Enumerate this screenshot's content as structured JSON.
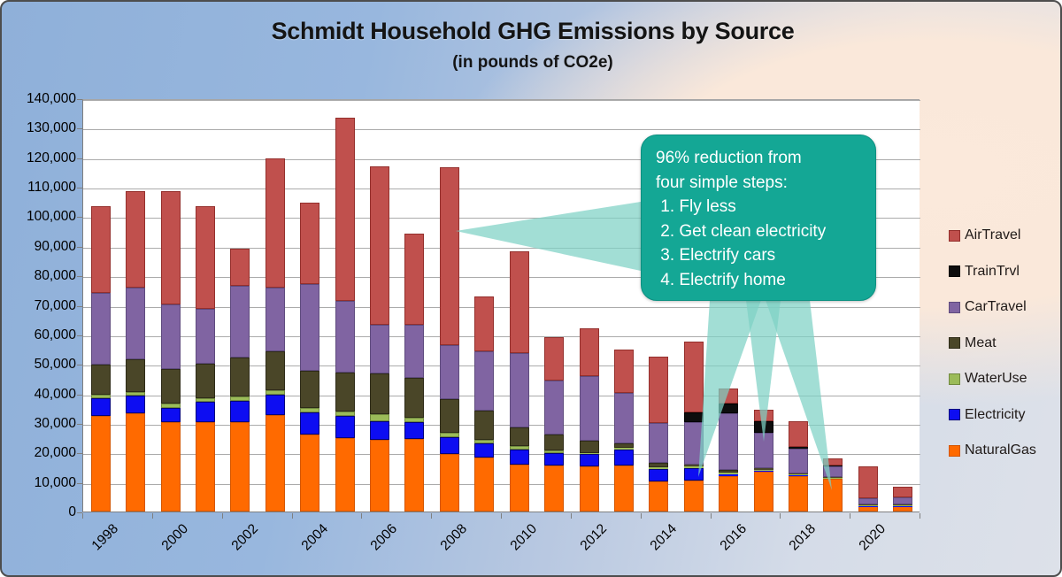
{
  "title": "Schmidt Household GHG Emissions by Source",
  "subtitle": "(in pounds of CO2e)",
  "colors": {
    "background_left_blue": "#8FB0D9",
    "background_right_peach": "#FBE9DB",
    "plot_background": "#FFFFFF",
    "gridline": "#ABABAB",
    "axis": "#7F7F7F",
    "callout_background": "#14A795",
    "callout_text": "#FFFFFF",
    "callout_pointer": "#7ED1C5"
  },
  "callout": {
    "lines": [
      "96% reduction from",
      "four simple steps:",
      " 1. Fly less",
      " 2. Get clean electricity",
      " 3. Electrify cars",
      " 4. Electrify home"
    ]
  },
  "chart_data": {
    "type": "bar",
    "stacked": true,
    "title": "Schmidt Household GHG Emissions by Source",
    "subtitle": "(in pounds of CO2e)",
    "xlabel": "",
    "ylabel": "",
    "ylim": [
      0,
      140000
    ],
    "y_tick_step": 10000,
    "grid": true,
    "legend_position": "right",
    "categories": [
      1998,
      1999,
      2000,
      2001,
      2002,
      2003,
      2004,
      2005,
      2006,
      2007,
      2008,
      2009,
      2010,
      2011,
      2012,
      2013,
      2014,
      2015,
      2016,
      2017,
      2018,
      2019,
      2020,
      2021
    ],
    "x_tick_labels": [
      "1998",
      "2000",
      "2002",
      "2004",
      "2006",
      "2008",
      "2010",
      "2012",
      "2014",
      "2016",
      "2018",
      "2020"
    ],
    "y_tick_labels": [
      "0",
      "10,000",
      "20,000",
      "30,000",
      "40,000",
      "50,000",
      "60,000",
      "70,000",
      "80,000",
      "90,000",
      "100,000",
      "110,000",
      "120,000",
      "130,000",
      "140,000"
    ],
    "legend_order": [
      "AirTravel",
      "TrainTrvl",
      "CarTravel",
      "Meat",
      "WaterUse",
      "Electricity",
      "NaturalGas"
    ],
    "series": [
      {
        "name": "NaturalGas",
        "color": "#FF6A00",
        "border": "#D45600",
        "values": [
          32500,
          33300,
          30300,
          30300,
          30300,
          32600,
          26100,
          25000,
          24200,
          24700,
          19400,
          18400,
          16000,
          15500,
          15200,
          15700,
          10100,
          10600,
          12000,
          13500,
          12000,
          11000,
          1800,
          1700
        ]
      },
      {
        "name": "Electricity",
        "color": "#0D0DF2",
        "border": "#00007D",
        "values": [
          5900,
          5900,
          4800,
          6800,
          7300,
          7000,
          7500,
          7400,
          6500,
          5500,
          5800,
          4800,
          5000,
          4200,
          4200,
          5300,
          4300,
          4100,
          600,
          400,
          300,
          300,
          100,
          100
        ]
      },
      {
        "name": "WaterUse",
        "color": "#9BBB59",
        "border": "#71893F",
        "values": [
          1300,
          1200,
          1500,
          1400,
          1400,
          1400,
          1400,
          1600,
          2300,
          1500,
          1500,
          1200,
          1200,
          1000,
          500,
          500,
          500,
          500,
          600,
          300,
          200,
          200,
          300,
          300
        ]
      },
      {
        "name": "Meat",
        "color": "#4A4628",
        "border": "#2E2B18",
        "values": [
          10000,
          11300,
          11600,
          11700,
          13200,
          13200,
          12700,
          13000,
          13700,
          13700,
          11300,
          9800,
          6200,
          5500,
          4100,
          1700,
          1500,
          700,
          1000,
          500,
          300,
          300,
          200,
          200
        ]
      },
      {
        "name": "CarTravel",
        "color": "#8064A2",
        "border": "#5F4B7E",
        "values": [
          24300,
          24100,
          22100,
          18600,
          24300,
          21600,
          29400,
          24400,
          16500,
          18000,
          18400,
          20200,
          25300,
          18200,
          21800,
          17100,
          13500,
          14300,
          19000,
          12000,
          8500,
          3600,
          2000,
          2500
        ]
      },
      {
        "name": "TrainTrvl",
        "color": "#0D0D0D",
        "border": "#000000",
        "values": [
          0,
          0,
          0,
          0,
          0,
          0,
          0,
          0,
          0,
          0,
          0,
          0,
          0,
          0,
          0,
          0,
          0,
          3500,
          3500,
          4000,
          500,
          300,
          0,
          0
        ]
      },
      {
        "name": "AirTravel",
        "color": "#C0504D",
        "border": "#942F2C",
        "values": [
          29500,
          32700,
          38200,
          34700,
          12500,
          43700,
          27400,
          62100,
          53800,
          30600,
          60100,
          18600,
          34300,
          14600,
          16200,
          14700,
          22600,
          23800,
          5000,
          3800,
          8700,
          2300,
          11000,
          3500
        ]
      }
    ]
  }
}
